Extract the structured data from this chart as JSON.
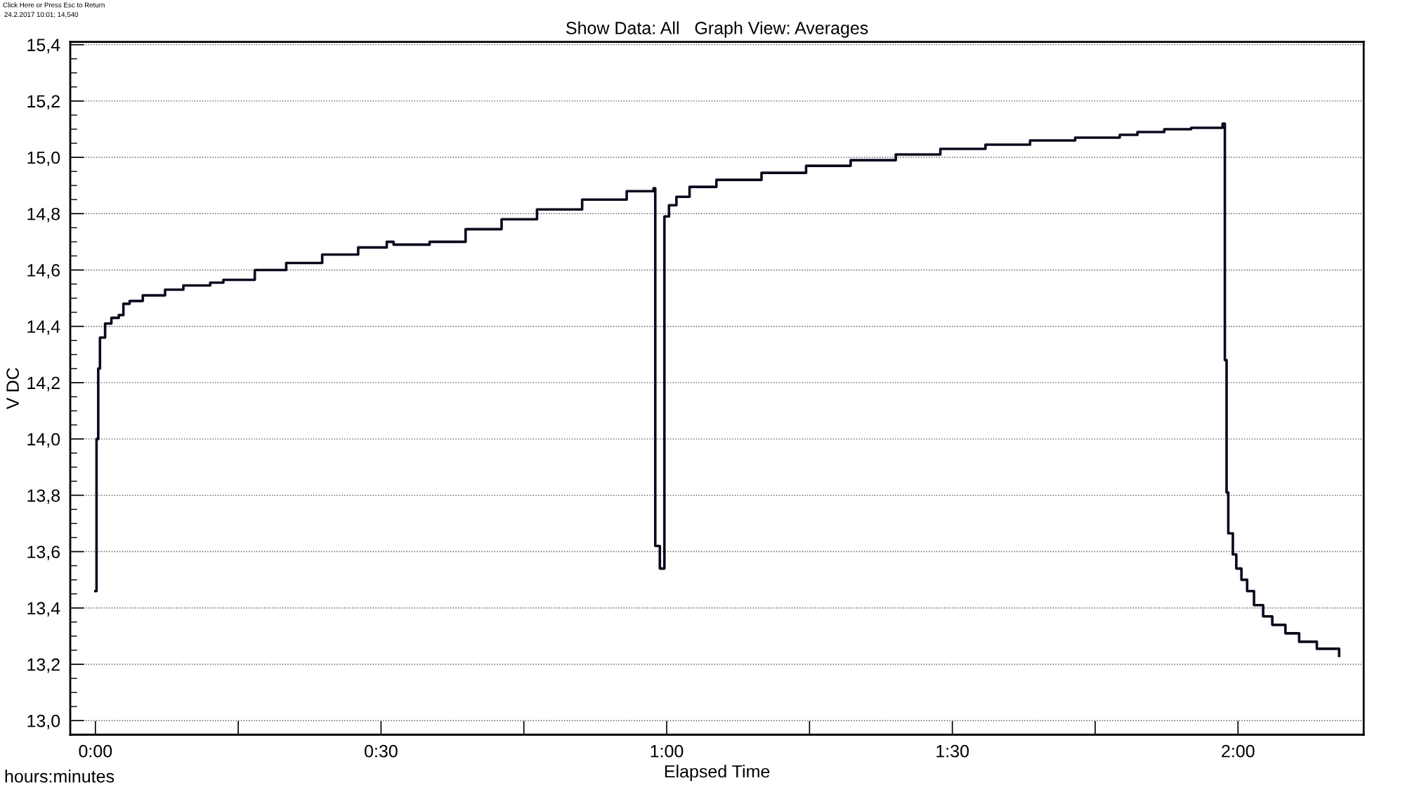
{
  "chart_data": {
    "type": "step",
    "title": "Show Data: All   Graph View: Averages",
    "xlabel": "Elapsed Time",
    "ylabel": "V DC",
    "annotations": [
      "hours:minutes",
      "Click Here or Press Esc to Return",
      "24.2.2017 10:01; 14,540"
    ],
    "x": [
      0,
      0.002,
      0.005,
      0.008,
      0.017,
      0.028,
      0.041,
      0.049,
      0.06,
      0.083,
      0.122,
      0.154,
      0.201,
      0.224,
      0.279,
      0.334,
      0.397,
      0.46,
      0.51,
      0.522,
      0.585,
      0.648,
      0.711,
      0.773,
      0.852,
      0.93,
      0.977,
      0.98,
      0.988,
      0.993,
      0.996,
      1.004,
      1.017,
      1.04,
      1.087,
      1.166,
      1.244,
      1.322,
      1.401,
      1.479,
      1.558,
      1.636,
      1.715,
      1.793,
      1.824,
      1.871,
      1.918,
      1.973,
      1.977,
      1.98,
      1.983,
      1.991,
      1.997,
      2.006,
      2.016,
      2.028,
      2.044,
      2.06,
      2.083,
      2.107,
      2.138,
      2.177
    ],
    "series": [
      {
        "color": "#0a0a1e",
        "values": [
          13.46,
          14.0,
          14.25,
          14.36,
          14.41,
          14.43,
          14.44,
          14.48,
          14.49,
          14.51,
          14.53,
          14.545,
          14.555,
          14.565,
          14.6,
          14.625,
          14.655,
          14.68,
          14.7,
          14.69,
          14.7,
          14.745,
          14.78,
          14.815,
          14.85,
          14.88,
          14.89,
          13.62,
          13.54,
          13.54,
          14.79,
          14.83,
          14.86,
          14.895,
          14.92,
          14.945,
          14.97,
          14.99,
          15.01,
          15.03,
          15.045,
          15.06,
          15.07,
          15.08,
          15.09,
          15.1,
          15.105,
          15.12,
          14.28,
          13.81,
          13.665,
          13.59,
          13.54,
          13.5,
          13.46,
          13.41,
          13.37,
          13.34,
          13.31,
          13.28,
          13.255,
          13.23
        ]
      }
    ],
    "xlim": [
      -0.044,
      2.22
    ],
    "xticks": [
      {
        "value": 0,
        "label": "0:00"
      },
      {
        "value": 0.5,
        "label": "0:30"
      },
      {
        "value": 1,
        "label": "1:00"
      },
      {
        "value": 1.5,
        "label": "1:30"
      },
      {
        "value": 2,
        "label": "2:00"
      }
    ],
    "ylim": [
      12.95,
      15.41
    ],
    "yticks": [
      {
        "value": 13.0,
        "label": "13,0"
      },
      {
        "value": 13.2,
        "label": "13,2"
      },
      {
        "value": 13.4,
        "label": "13,4"
      },
      {
        "value": 13.6,
        "label": "13,6"
      },
      {
        "value": 13.8,
        "label": "13,8"
      },
      {
        "value": 14.0,
        "label": "14,0"
      },
      {
        "value": 14.2,
        "label": "14,2"
      },
      {
        "value": 14.4,
        "label": "14,4"
      },
      {
        "value": 14.6,
        "label": "14,6"
      },
      {
        "value": 14.8,
        "label": "14,8"
      },
      {
        "value": 15.0,
        "label": "15,0"
      },
      {
        "value": 15.2,
        "label": "15,2"
      },
      {
        "value": 15.4,
        "label": "15,4"
      }
    ],
    "grid": "y",
    "legend": false,
    "line_style": "solid",
    "marker": "none"
  }
}
